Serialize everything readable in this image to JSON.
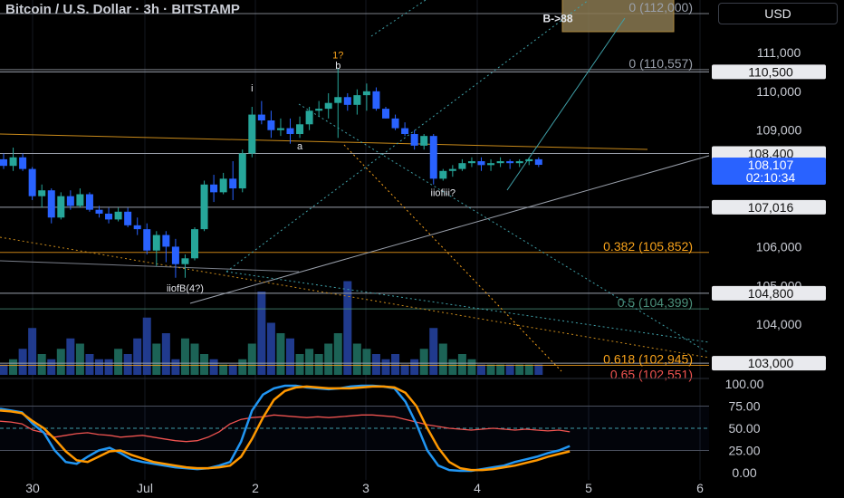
{
  "header": {
    "title": "Bitcoin / U.S. Dollar · 3h · BITSTAMP",
    "currency": "USD"
  },
  "colors": {
    "bg": "#000000",
    "up": "#26a69a",
    "down": "#2962ff",
    "axis_text": "#c9ccd4",
    "grid": "#5a5e6a",
    "fib_orange": "#f7a21b",
    "fib_green": "#4a8f7a",
    "stoch_k": "#2196f3",
    "stoch_d": "#ff9800",
    "rsi": "#ef5350",
    "current_price_bg": "#2962ff"
  },
  "chart_data": [
    {
      "type": "candlestick",
      "title": "Bitcoin / U.S. Dollar · 3h · BITSTAMP",
      "xlabel": "",
      "ylabel": "",
      "ylim": [
        102700,
        112350
      ],
      "x_ticks": [
        "30",
        "Jul",
        "2",
        "3",
        "4",
        "5",
        "6"
      ],
      "y_ticks": [
        103000,
        104000,
        105000,
        106000,
        107000,
        108000,
        109000,
        110000,
        111000
      ],
      "candles": [
        [
          108250,
          108400,
          108000,
          108080
        ],
        [
          108080,
          108550,
          107950,
          108300
        ],
        [
          108300,
          108400,
          107950,
          108000
        ],
        [
          108000,
          108050,
          107200,
          107300
        ],
        [
          107300,
          107600,
          107000,
          107450
        ],
        [
          107450,
          107500,
          106600,
          106750
        ],
        [
          106750,
          107400,
          106700,
          107300
        ],
        [
          107300,
          107450,
          106950,
          107050
        ],
        [
          107050,
          107500,
          107000,
          107350
        ],
        [
          107350,
          107400,
          106900,
          106950
        ],
        [
          106950,
          107050,
          106750,
          106850
        ],
        [
          106850,
          107000,
          106600,
          106700
        ],
        [
          106700,
          107000,
          106650,
          106900
        ],
        [
          106900,
          107000,
          106500,
          106550
        ],
        [
          106550,
          106750,
          106300,
          106450
        ],
        [
          106450,
          106600,
          105800,
          105900
        ],
        [
          105900,
          106400,
          105500,
          106300
        ],
        [
          106300,
          106400,
          105600,
          106000
        ],
        [
          106000,
          106200,
          105200,
          105550
        ],
        [
          105550,
          105800,
          105200,
          105700
        ],
        [
          105700,
          106500,
          105650,
          106450
        ],
        [
          106450,
          107700,
          106400,
          107600
        ],
        [
          107600,
          107850,
          107150,
          107400
        ],
        [
          107400,
          107900,
          107350,
          107750
        ],
        [
          107750,
          108200,
          107200,
          107500
        ],
        [
          107500,
          108500,
          107400,
          108400
        ],
        [
          108400,
          109600,
          108300,
          109400
        ],
        [
          109400,
          109750,
          109150,
          109250
        ],
        [
          109250,
          109500,
          108800,
          109000
        ],
        [
          109000,
          109300,
          108850,
          109050
        ],
        [
          109050,
          109300,
          108650,
          108900
        ],
        [
          108900,
          109350,
          108800,
          109150
        ],
        [
          109150,
          109600,
          109000,
          109500
        ],
        [
          109500,
          109750,
          109350,
          109550
        ],
        [
          109550,
          109950,
          109300,
          109700
        ],
        [
          109700,
          110600,
          108800,
          109850
        ],
        [
          109850,
          109950,
          109500,
          109650
        ],
        [
          109650,
          110050,
          109400,
          109900
        ],
        [
          109900,
          110200,
          109500,
          110000
        ],
        [
          110000,
          110100,
          109500,
          109550
        ],
        [
          109550,
          109600,
          109300,
          109300
        ],
        [
          109300,
          109400,
          109000,
          109050
        ],
        [
          109050,
          109200,
          108850,
          108900
        ],
        [
          108900,
          109000,
          108500,
          108600
        ],
        [
          108600,
          108900,
          108500,
          108850
        ],
        [
          108850,
          108900,
          107600,
          107750
        ],
        [
          107750,
          108000,
          107700,
          107950
        ],
        [
          107950,
          108100,
          107800,
          108000
        ],
        [
          108000,
          108250,
          107950,
          108150
        ],
        [
          108150,
          108300,
          108050,
          108200
        ],
        [
          108200,
          108300,
          107950,
          108100
        ],
        [
          108100,
          108250,
          107950,
          108150
        ],
        [
          108150,
          108300,
          108050,
          108200
        ],
        [
          108200,
          108250,
          108000,
          108150
        ],
        [
          108150,
          108250,
          108050,
          108200
        ],
        [
          108200,
          108300,
          108100,
          108250
        ],
        [
          108250,
          108300,
          108050,
          108107
        ]
      ],
      "volume_rel": [
        0.1,
        0.15,
        0.25,
        0.45,
        0.2,
        0.15,
        0.25,
        0.35,
        0.3,
        0.2,
        0.15,
        0.15,
        0.25,
        0.2,
        0.35,
        0.55,
        0.3,
        0.4,
        0.15,
        0.35,
        0.3,
        0.2,
        0.15,
        0.1,
        0.1,
        0.15,
        0.3,
        0.8,
        0.5,
        0.4,
        0.35,
        0.2,
        0.25,
        0.2,
        0.3,
        0.4,
        0.9,
        0.3,
        0.25,
        0.2,
        0.15,
        0.2,
        0.1,
        0.15,
        0.25,
        0.45,
        0.3,
        0.15,
        0.2,
        0.15,
        0.1,
        0.1,
        0.1,
        0.1,
        0.1,
        0.1,
        0.1
      ],
      "price_labels": [
        {
          "value": "110,500",
          "kind": "level"
        },
        {
          "value": "108,400",
          "kind": "level"
        },
        {
          "value": "108,107",
          "kind": "current"
        },
        {
          "value": "02:10:34",
          "kind": "countdown"
        },
        {
          "value": "107,016",
          "kind": "level"
        },
        {
          "value": "104,800",
          "kind": "level"
        },
        {
          "value": "103,000",
          "kind": "level"
        }
      ],
      "fib_levels": [
        {
          "label": "0 (110,557)",
          "price": 110557,
          "color": "#9aa0ab"
        },
        {
          "label": "0.382 (105,852)",
          "price": 105852,
          "color": "#f7a21b"
        },
        {
          "label": "0.5 (104,399)",
          "price": 104399,
          "color": "#4a8f7a"
        },
        {
          "label": "0.618 (102,945)",
          "price": 102945,
          "color": "#f7a21b"
        },
        {
          "label": "0.65 (102,551)",
          "price": 102551,
          "color": "#ef5350"
        },
        {
          "label": "0 (112,000)",
          "price": 112000,
          "color": "#9aa0ab"
        }
      ],
      "annotations": [
        {
          "text": "B->88",
          "price": 111780,
          "x_index": 56
        },
        {
          "text": "1?",
          "price": 110850,
          "x_index": 35
        },
        {
          "text": "b",
          "price": 110580,
          "x_index": 35
        },
        {
          "text": "i",
          "price": 110000,
          "x_index": 26
        },
        {
          "text": "a",
          "price": 108500,
          "x_index": 31
        },
        {
          "text": "iiofB(4?)",
          "price": 104850,
          "x_index": 19
        },
        {
          "text": "iiofiii?",
          "price": 107300,
          "x_index": 46
        }
      ]
    },
    {
      "type": "line",
      "title": "",
      "ylim": [
        0,
        100
      ],
      "y_ticks": [
        "100.00",
        "75.00",
        "50.00",
        "25.00",
        "0.00"
      ],
      "series": [
        {
          "key": "k",
          "values": [
            72,
            70,
            68,
            55,
            45,
            25,
            12,
            10,
            18,
            25,
            28,
            22,
            15,
            12,
            10,
            8,
            6,
            5,
            4,
            5,
            8,
            12,
            35,
            70,
            88,
            95,
            98,
            98,
            96,
            95,
            94,
            95,
            97,
            98,
            98,
            97,
            95,
            80,
            55,
            25,
            8,
            3,
            2,
            2,
            4,
            6,
            8,
            12,
            15,
            18,
            22,
            25,
            30
          ]
        },
        {
          "key": "d",
          "values": [
            70,
            69,
            67,
            58,
            50,
            38,
            24,
            14,
            12,
            18,
            24,
            25,
            20,
            16,
            12,
            10,
            8,
            6,
            5,
            5,
            6,
            8,
            18,
            38,
            62,
            82,
            92,
            96,
            97,
            96,
            95,
            95,
            95,
            96,
            97,
            97,
            96,
            90,
            75,
            50,
            28,
            12,
            5,
            3,
            3,
            4,
            6,
            8,
            11,
            14,
            18,
            21,
            24
          ]
        },
        {
          "key": "rsi",
          "values": [
            58,
            57,
            55,
            48,
            45,
            40,
            42,
            44,
            45,
            43,
            42,
            40,
            41,
            42,
            40,
            38,
            36,
            35,
            36,
            40,
            46,
            55,
            60,
            62,
            63,
            65,
            64,
            63,
            62,
            63,
            62,
            63,
            64,
            65,
            65,
            64,
            63,
            60,
            57,
            54,
            52,
            50,
            49,
            48,
            49,
            50,
            49,
            48,
            49,
            48,
            47,
            48,
            46
          ]
        }
      ]
    }
  ]
}
